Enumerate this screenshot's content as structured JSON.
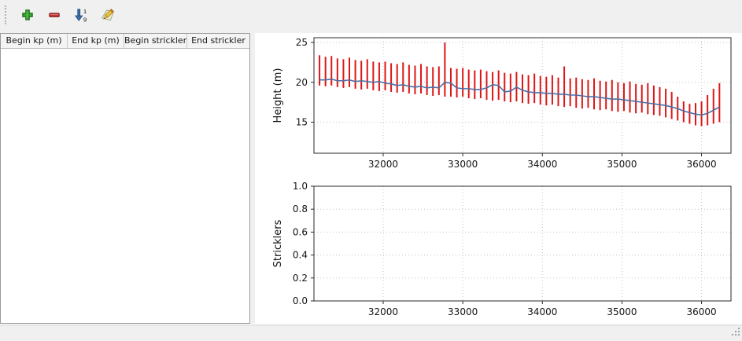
{
  "toolbar": {
    "buttons": [
      {
        "name": "add-row",
        "icon": "plus-icon"
      },
      {
        "name": "remove-row",
        "icon": "minus-icon"
      },
      {
        "name": "sort-rows",
        "icon": "sort-numeric-down-icon"
      },
      {
        "name": "edit-values",
        "icon": "pencil-icon"
      }
    ]
  },
  "table": {
    "columns": [
      "Begin kp (m)",
      "End kp (m)",
      "Begin strickler",
      "End strickler"
    ],
    "rows": []
  },
  "chart_data": [
    {
      "type": "bar",
      "title": "",
      "xlabel": "",
      "ylabel": "Height (m)",
      "xlim": [
        31130,
        36370
      ],
      "ylim": [
        11.1,
        25.6
      ],
      "xticks": [
        32000,
        33000,
        34000,
        35000,
        36000
      ],
      "xtick_labels": [
        "32000",
        "33000",
        "34000",
        "35000",
        "36000"
      ],
      "yticks": [
        15,
        20,
        25
      ],
      "ytick_labels": [
        "15",
        "20",
        "25"
      ],
      "grid": true,
      "bar_color": "#dd1616",
      "line_color": "#4a6fa5",
      "x": [
        31200,
        31275,
        31350,
        31425,
        31500,
        31575,
        31650,
        31725,
        31800,
        31875,
        31950,
        32025,
        32100,
        32175,
        32250,
        32325,
        32400,
        32475,
        32550,
        32625,
        32700,
        32775,
        32850,
        32925,
        33000,
        33075,
        33150,
        33225,
        33300,
        33375,
        33450,
        33525,
        33600,
        33675,
        33750,
        33825,
        33900,
        33975,
        34050,
        34125,
        34200,
        34275,
        34350,
        34425,
        34500,
        34575,
        34650,
        34725,
        34800,
        34875,
        34950,
        35025,
        35100,
        35175,
        35250,
        35325,
        35400,
        35475,
        35550,
        35625,
        35700,
        35775,
        35850,
        35925,
        36000,
        36075,
        36150,
        36225
      ],
      "bar_top": [
        23.4,
        23.2,
        23.3,
        23.0,
        22.9,
        23.1,
        22.8,
        22.7,
        22.9,
        22.6,
        22.5,
        22.6,
        22.4,
        22.3,
        22.5,
        22.2,
        22.1,
        22.3,
        22.0,
        21.9,
        22.0,
        25.0,
        21.8,
        21.7,
        21.8,
        21.6,
        21.5,
        21.6,
        21.4,
        21.3,
        21.5,
        21.2,
        21.1,
        21.3,
        21.0,
        20.9,
        21.1,
        20.8,
        20.7,
        20.9,
        20.6,
        22.0,
        20.5,
        20.6,
        20.4,
        20.3,
        20.5,
        20.2,
        20.1,
        20.3,
        20.0,
        19.9,
        20.1,
        19.8,
        19.7,
        19.9,
        19.6,
        19.4,
        19.2,
        18.8,
        18.2,
        17.6,
        17.3,
        17.4,
        17.6,
        18.4,
        19.2,
        19.9
      ],
      "bar_bottom": [
        19.6,
        19.5,
        19.6,
        19.4,
        19.3,
        19.4,
        19.2,
        19.1,
        19.2,
        19.0,
        18.9,
        19.0,
        18.8,
        18.7,
        18.8,
        18.6,
        18.5,
        18.6,
        18.4,
        18.3,
        18.4,
        18.2,
        18.2,
        18.1,
        18.2,
        18.0,
        17.9,
        18.0,
        17.8,
        17.7,
        17.8,
        17.6,
        17.5,
        17.6,
        17.4,
        17.3,
        17.4,
        17.2,
        17.1,
        17.2,
        17.0,
        16.9,
        17.0,
        16.8,
        16.7,
        16.8,
        16.6,
        16.5,
        16.6,
        16.4,
        16.3,
        16.4,
        16.2,
        16.1,
        16.2,
        16.0,
        15.9,
        15.8,
        15.6,
        15.4,
        15.2,
        15.0,
        14.8,
        14.6,
        14.5,
        14.6,
        14.8,
        15.0
      ],
      "line": [
        20.3,
        20.3,
        20.4,
        20.2,
        20.2,
        20.3,
        20.1,
        20.2,
        20.1,
        20.0,
        20.1,
        19.9,
        19.8,
        19.6,
        19.7,
        19.5,
        19.4,
        19.5,
        19.3,
        19.4,
        19.3,
        20.0,
        19.9,
        19.3,
        19.2,
        19.2,
        19.1,
        19.1,
        19.3,
        19.7,
        19.6,
        18.8,
        18.9,
        19.4,
        19.0,
        18.8,
        18.7,
        18.7,
        18.6,
        18.6,
        18.5,
        18.5,
        18.4,
        18.4,
        18.3,
        18.2,
        18.2,
        18.1,
        18.0,
        17.9,
        17.9,
        17.8,
        17.7,
        17.6,
        17.5,
        17.4,
        17.3,
        17.2,
        17.1,
        16.9,
        16.7,
        16.4,
        16.2,
        16.0,
        15.9,
        16.1,
        16.5,
        16.9
      ]
    },
    {
      "type": "empty",
      "title": "",
      "xlabel": "",
      "ylabel": "Stricklers",
      "xlim": [
        31130,
        36370
      ],
      "ylim": [
        0,
        1
      ],
      "xticks": [
        32000,
        33000,
        34000,
        35000,
        36000
      ],
      "xtick_labels": [
        "32000",
        "33000",
        "34000",
        "35000",
        "36000"
      ],
      "yticks": [
        0,
        0.2,
        0.4,
        0.6,
        0.8,
        1.0
      ],
      "ytick_labels": [
        "0.0",
        "0.2",
        "0.4",
        "0.6",
        "0.8",
        "1.0"
      ],
      "grid": true
    }
  ]
}
